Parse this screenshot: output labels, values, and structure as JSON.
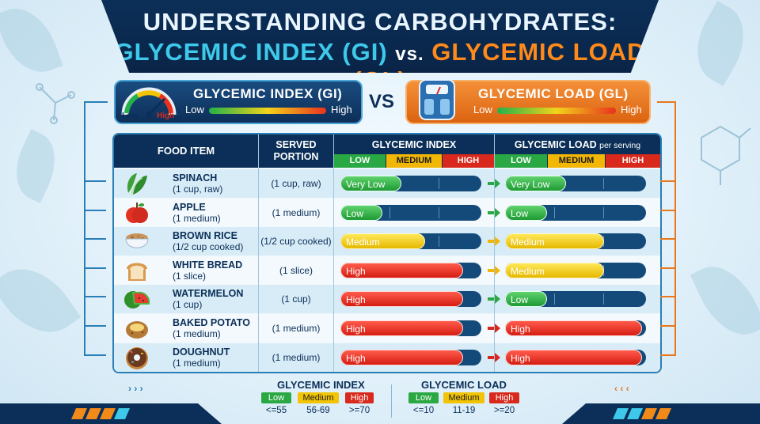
{
  "title": {
    "line1": "UNDERSTANDING CARBOHYDRATES:",
    "gi": "GLYCEMIC INDEX (GI)",
    "vs": "vs.",
    "gl": "GLYCEMIC LOAD (GL)"
  },
  "gi_box": {
    "title": "GLYCEMIC INDEX (GI)",
    "low": "Low",
    "high": "High",
    "gauge_low": "Low",
    "gauge_high": "High",
    "icon": "gauge-icon"
  },
  "gl_box": {
    "title": "GLYCEMIC LOAD (GL)",
    "low": "Low",
    "high": "High",
    "icon": "scale-icon"
  },
  "vs_label": "VS",
  "table": {
    "headers": {
      "food": "FOOD ITEM",
      "served_line1": "SERVED",
      "served_line2": "PORTION",
      "gi": "GLYCEMIC INDEX",
      "gl": "GLYCEMIC LOAD",
      "gl_suffix": "per serving"
    },
    "sub_headers": {
      "low": "LOW",
      "medium": "MEDIUM",
      "high": "HIGH"
    },
    "rows": [
      {
        "name": "SPINACH",
        "serving": "(1 cup, raw)",
        "portion": "(1 cup, raw)",
        "gi": "Very Low",
        "gl": "Very Low",
        "gi_level": 0.43,
        "gl_level": 0.43,
        "icon": "spinach-icon"
      },
      {
        "name": "APPLE",
        "serving": "(1 medium)",
        "portion": "(1 medium)",
        "gi": "Low",
        "gl": "Low",
        "gi_level": 0.3,
        "gl_level": 0.3,
        "icon": "apple-icon"
      },
      {
        "name": "BROWN RICE",
        "serving": "(1/2 cup cooked)",
        "portion": "(1/2 cup cooked)",
        "gi": "Medium",
        "gl": "Medium",
        "gi_level": 0.6,
        "gl_level": 0.7,
        "icon": "rice-bowl-icon"
      },
      {
        "name": "WHITE BREAD",
        "serving": "(1 slice)",
        "portion": "(1 slice)",
        "gi": "High",
        "gl": "Medium",
        "gi_level": 0.87,
        "gl_level": 0.7,
        "icon": "bread-icon"
      },
      {
        "name": "WATERMELON",
        "serving": "(1 cup)",
        "portion": "(1 cup)",
        "gi": "High",
        "gl": "Low",
        "gi_level": 0.87,
        "gl_level": 0.3,
        "icon": "watermelon-icon"
      },
      {
        "name": "BAKED POTATO",
        "serving": "(1 medium)",
        "portion": "(1 medium)",
        "gi": "High",
        "gl": "High",
        "gi_level": 0.87,
        "gl_level": 0.97,
        "icon": "potato-icon"
      },
      {
        "name": "DOUGHNUT",
        "serving": "(1 medium)",
        "portion": "(1 medium)",
        "gi": "High",
        "gl": "High",
        "gi_level": 0.87,
        "gl_level": 0.97,
        "icon": "doughnut-icon"
      }
    ]
  },
  "legend": {
    "gi": {
      "title": "GLYCEMIC INDEX",
      "low": "Low",
      "medium": "Medium",
      "high": "High",
      "low_range": "<=55",
      "medium_range": "56-69",
      "high_range": ">=70"
    },
    "gl": {
      "title": "GLYCEMIC LOAD",
      "low": "Low",
      "medium": "Medium",
      "high": "High",
      "low_range": "<=10",
      "medium_range": "11-19",
      "high_range": ">=20"
    }
  },
  "colors": {
    "navy": "#0b2f58",
    "low": "#2aa843",
    "medium": "#f2c405",
    "high": "#d8291c",
    "accent_blue": "#3ec9ea",
    "accent_orange": "#ff8a1a"
  }
}
